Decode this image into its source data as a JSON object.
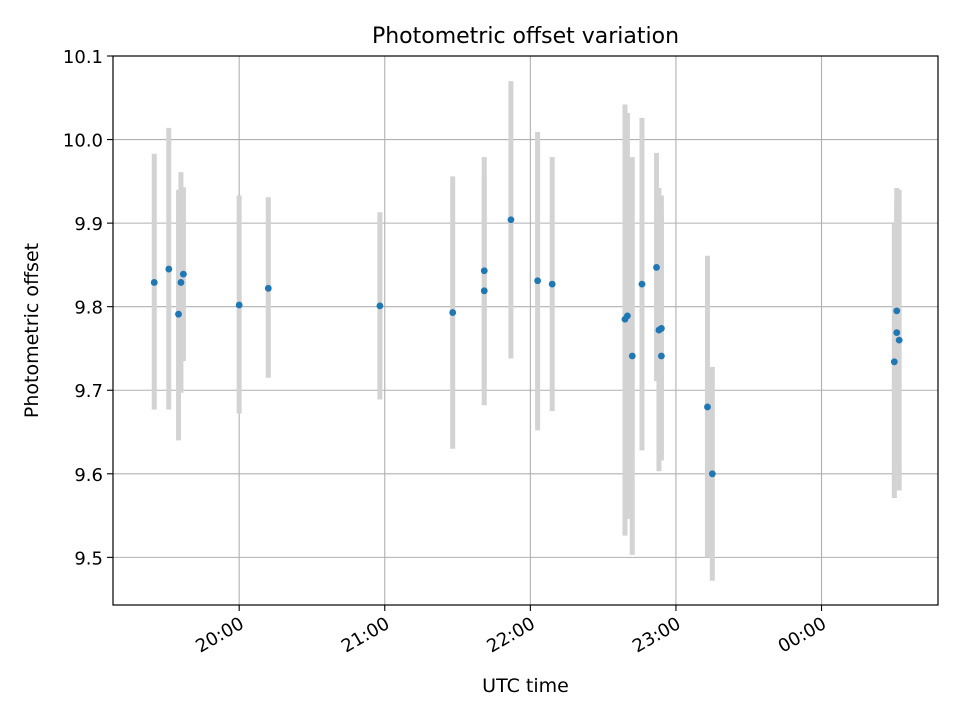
{
  "chart_data": {
    "type": "scatter",
    "title": "Photometric offset variation",
    "xlabel": "UTC time",
    "ylabel": "Photometric offset",
    "xlim": [
      "19:08",
      "00:48"
    ],
    "ylim": [
      9.443,
      10.1
    ],
    "x_ticks": [
      "20:00",
      "21:00",
      "22:00",
      "23:00",
      "00:00"
    ],
    "y_ticks": [
      9.5,
      9.6,
      9.7,
      9.8,
      9.9,
      10.0,
      10.1
    ],
    "y_tick_labels": [
      "9.5",
      "9.6",
      "9.7",
      "9.8",
      "9.9",
      "10.0",
      "10.1"
    ],
    "grid": true,
    "error_bars": true,
    "colors": {
      "marker": "#1f77b4",
      "error_bar": "#d3d3d3",
      "grid": "#b0b0b0"
    },
    "points": [
      {
        "x": "19:25",
        "y": 9.829,
        "err_low": 9.677,
        "err_high": 9.983
      },
      {
        "x": "19:31",
        "y": 9.845,
        "err_low": 9.677,
        "err_high": 10.014
      },
      {
        "x": "19:35",
        "y": 9.791,
        "err_low": 9.64,
        "err_high": 9.94
      },
      {
        "x": "19:36",
        "y": 9.829,
        "err_low": 9.697,
        "err_high": 9.961
      },
      {
        "x": "19:37",
        "y": 9.839,
        "err_low": 9.735,
        "err_high": 9.943
      },
      {
        "x": "20:00",
        "y": 9.802,
        "err_low": 9.672,
        "err_high": 9.933
      },
      {
        "x": "20:12",
        "y": 9.822,
        "err_low": 9.715,
        "err_high": 9.931
      },
      {
        "x": "20:58",
        "y": 9.801,
        "err_low": 9.689,
        "err_high": 9.913
      },
      {
        "x": "21:28",
        "y": 9.793,
        "err_low": 9.63,
        "err_high": 9.956
      },
      {
        "x": "21:41",
        "y": 9.819,
        "err_low": 9.682,
        "err_high": 9.956
      },
      {
        "x": "21:41",
        "y": 9.843,
        "err_low": 9.707,
        "err_high": 9.979
      },
      {
        "x": "21:52",
        "y": 9.904,
        "err_low": 9.738,
        "err_high": 10.07
      },
      {
        "x": "22:03",
        "y": 9.831,
        "err_low": 9.652,
        "err_high": 10.009
      },
      {
        "x": "22:09",
        "y": 9.827,
        "err_low": 9.675,
        "err_high": 9.979
      },
      {
        "x": "22:39",
        "y": 9.785,
        "err_low": 9.526,
        "err_high": 10.042
      },
      {
        "x": "22:40",
        "y": 9.789,
        "err_low": 9.546,
        "err_high": 10.032
      },
      {
        "x": "22:42",
        "y": 9.741,
        "err_low": 9.503,
        "err_high": 9.979
      },
      {
        "x": "22:46",
        "y": 9.827,
        "err_low": 9.628,
        "err_high": 10.026
      },
      {
        "x": "22:52",
        "y": 9.847,
        "err_low": 9.711,
        "err_high": 9.984
      },
      {
        "x": "22:53",
        "y": 9.772,
        "err_low": 9.603,
        "err_high": 9.942
      },
      {
        "x": "22:54",
        "y": 9.741,
        "err_low": 9.623,
        "err_high": 9.911
      },
      {
        "x": "22:54",
        "y": 9.774,
        "err_low": 9.616,
        "err_high": 9.933
      },
      {
        "x": "23:13",
        "y": 9.68,
        "err_low": 9.5,
        "err_high": 9.861
      },
      {
        "x": "23:15",
        "y": 9.6,
        "err_low": 9.472,
        "err_high": 9.728
      },
      {
        "x": "00:30",
        "y": 9.734,
        "err_low": 9.571,
        "err_high": 9.899
      },
      {
        "x": "00:31",
        "y": 9.769,
        "err_low": 9.612,
        "err_high": 9.926
      },
      {
        "x": "00:31",
        "y": 9.795,
        "err_low": 9.648,
        "err_high": 9.942
      },
      {
        "x": "00:32",
        "y": 9.76,
        "err_low": 9.58,
        "err_high": 9.94
      }
    ]
  }
}
